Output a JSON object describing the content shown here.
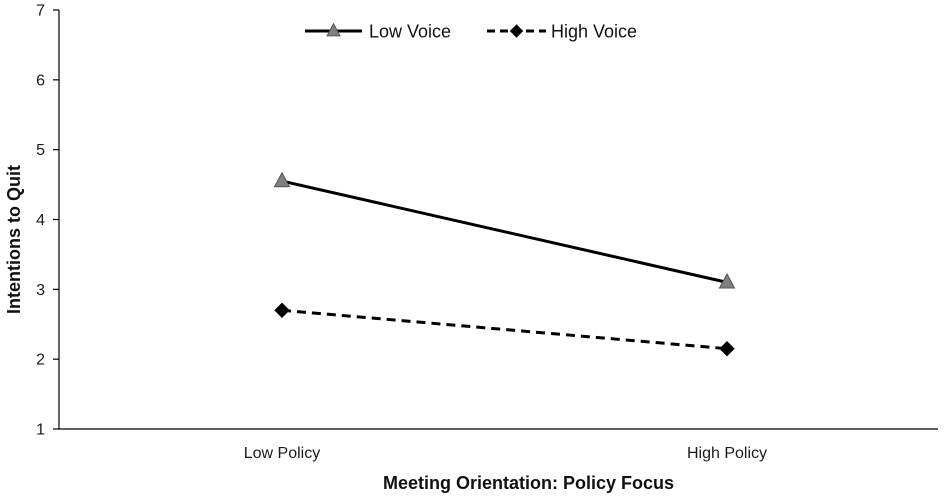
{
  "chart_data": {
    "type": "line",
    "title": "",
    "xlabel": "Meeting Orientation: Policy Focus",
    "ylabel": "Intentions to Quit",
    "categories": [
      "Low Policy",
      "High Policy"
    ],
    "ylim": [
      1,
      7
    ],
    "yticks": [
      1,
      2,
      3,
      4,
      5,
      6,
      7
    ],
    "grid": false,
    "legend_position": "top-center",
    "series": [
      {
        "name": "Low Voice",
        "values": [
          4.55,
          3.1
        ],
        "line_style": "solid",
        "marker": "triangle",
        "line_color": "#000000",
        "marker_color": "#808080"
      },
      {
        "name": "High Voice",
        "values": [
          2.7,
          2.15
        ],
        "line_style": "dashed",
        "marker": "diamond",
        "line_color": "#000000",
        "marker_color": "#000000"
      }
    ]
  }
}
